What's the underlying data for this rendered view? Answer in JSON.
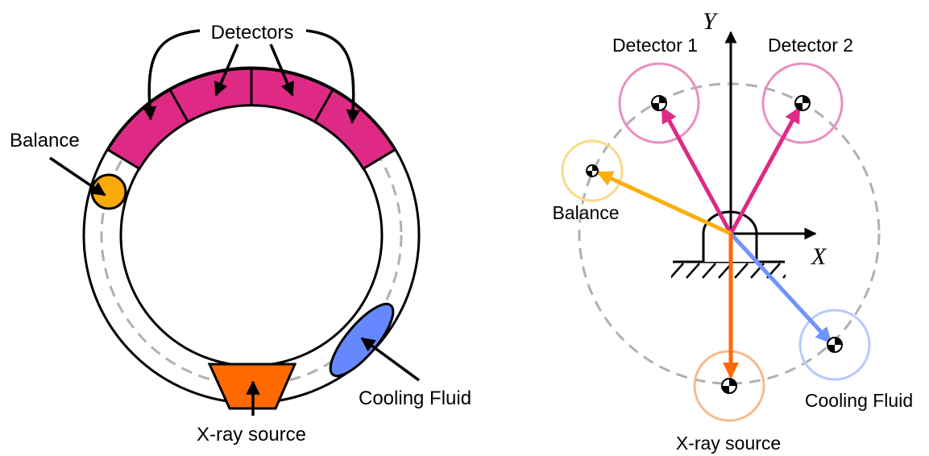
{
  "left_diagram": {
    "labels": {
      "detectors": "Detectors",
      "balance": "Balance",
      "xray_source": "X-ray source",
      "cooling_fluid": "Cooling Fluid"
    },
    "colors": {
      "detector": "#de2a85",
      "balance": "#f9a90a",
      "xray": "#ff6a00",
      "cooling": "#6688ff",
      "dashed": "#b0b0b0"
    }
  },
  "right_diagram": {
    "labels": {
      "axis_y": "Y",
      "axis_x": "X",
      "detector_1": "Detector 1",
      "detector_2": "Detector 2",
      "balance": "Balance",
      "xray_source": "X-ray source",
      "cooling_fluid": "Cooling Fluid"
    },
    "colors": {
      "detector_vector": "#de2a85",
      "detector_circle": "#e98fc0",
      "balance_vector": "#fbae0c",
      "balance_circle": "#fbd98a",
      "xray_vector": "#ff6a00",
      "xray_circle": "#f9b98a",
      "cooling_vector": "#6f93ff",
      "cooling_circle": "#b7c9ff",
      "dashed": "#b0b0b0"
    }
  }
}
